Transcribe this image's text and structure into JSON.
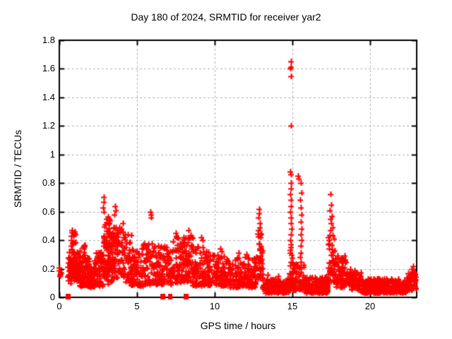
{
  "title": "Day 180 of 2024, SRMTID for receiver yar2",
  "x_axis": {
    "label": "GPS time / hours",
    "min": 0,
    "max": 23,
    "ticks": [
      0,
      5,
      10,
      15,
      20
    ],
    "tick_labels": [
      "0",
      "5",
      "10",
      "15",
      "20"
    ]
  },
  "y_axis": {
    "label": "SRMTID / TECUs",
    "min": 0,
    "max": 1.8,
    "ticks": [
      0,
      0.2,
      0.4,
      0.6,
      0.8,
      1.0,
      1.2,
      1.4,
      1.6,
      1.8
    ],
    "tick_labels": [
      "0",
      "0.2",
      "0.4",
      "0.6",
      "0.8",
      "1",
      "1.2",
      "1.4",
      "1.6",
      "1.8"
    ]
  },
  "colors": {
    "marker": "#ff0000",
    "grid": "#b0b0b0",
    "axis": "#000000",
    "background": "#ffffff",
    "text": "#000000"
  },
  "chart_data": {
    "type": "scatter",
    "title": "Day 180 of 2024, SRMTID for receiver yar2",
    "xlabel": "GPS time / hours",
    "ylabel": "SRMTID / TECUs",
    "xlim": [
      0,
      23
    ],
    "ylim": [
      0,
      1.8
    ],
    "grid": true,
    "grid_style": "dashed",
    "legend": "none",
    "seed": 20240180,
    "series": [
      {
        "name": "srmtid-points",
        "marker": "plus",
        "color": "#ff0000",
        "clusters": [
          {
            "x0": 0.0,
            "x1": 0.12,
            "y0": 0.14,
            "y1": 0.21,
            "n": 7,
            "p": 1.0
          },
          {
            "x0": 0.55,
            "x1": 0.8,
            "y0": 0.1,
            "y1": 0.32,
            "n": 30,
            "p": 1.2
          },
          {
            "x0": 0.72,
            "x1": 1.08,
            "y0": 0.14,
            "y1": 0.47,
            "n": 55,
            "p": 1.3
          },
          {
            "x0": 0.95,
            "x1": 1.35,
            "y0": 0.1,
            "y1": 0.33,
            "n": 45,
            "p": 1.3
          },
          {
            "x0": 1.3,
            "x1": 1.95,
            "y0": 0.08,
            "y1": 0.3,
            "n": 80,
            "p": 1.5
          },
          {
            "x0": 1.5,
            "x1": 1.7,
            "y0": 0.24,
            "y1": 0.37,
            "n": 12,
            "p": 1.0
          },
          {
            "x0": 1.9,
            "x1": 2.3,
            "y0": 0.07,
            "y1": 0.22,
            "n": 45,
            "p": 1.2
          },
          {
            "x0": 2.25,
            "x1": 2.78,
            "y0": 0.08,
            "y1": 0.32,
            "n": 55,
            "p": 1.4
          },
          {
            "x0": 2.78,
            "x1": 3.02,
            "y0": 0.14,
            "y1": 0.58,
            "n": 30,
            "p": 1.5
          },
          {
            "x0": 3.0,
            "x1": 3.5,
            "y0": 0.22,
            "y1": 0.57,
            "n": 55,
            "p": 1.2
          },
          {
            "x0": 3.0,
            "x1": 3.55,
            "y0": 0.09,
            "y1": 0.25,
            "n": 30,
            "p": 1.0
          },
          {
            "x0": 3.5,
            "x1": 4.15,
            "y0": 0.14,
            "y1": 0.52,
            "n": 60,
            "p": 1.4
          },
          {
            "x0": 4.15,
            "x1": 4.65,
            "y0": 0.11,
            "y1": 0.44,
            "n": 45,
            "p": 1.4
          },
          {
            "x0": 4.6,
            "x1": 5.4,
            "y0": 0.08,
            "y1": 0.35,
            "n": 75,
            "p": 1.5
          },
          {
            "x0": 5.4,
            "x1": 6.25,
            "y0": 0.09,
            "y1": 0.38,
            "n": 65,
            "p": 1.5
          },
          {
            "x0": 6.25,
            "x1": 7.25,
            "y0": 0.09,
            "y1": 0.36,
            "n": 85,
            "p": 1.5
          },
          {
            "x0": 7.25,
            "x1": 8.05,
            "y0": 0.1,
            "y1": 0.42,
            "n": 75,
            "p": 1.5
          },
          {
            "x0": 8.0,
            "x1": 8.6,
            "y0": 0.11,
            "y1": 0.45,
            "n": 55,
            "p": 1.4
          },
          {
            "x0": 8.6,
            "x1": 9.6,
            "y0": 0.08,
            "y1": 0.36,
            "n": 85,
            "p": 1.5
          },
          {
            "x0": 9.6,
            "x1": 11.0,
            "y0": 0.08,
            "y1": 0.3,
            "n": 115,
            "p": 1.4
          },
          {
            "x0": 11.0,
            "x1": 12.65,
            "y0": 0.07,
            "y1": 0.28,
            "n": 125,
            "p": 1.4
          },
          {
            "x0": 12.62,
            "x1": 13.1,
            "y0": 0.13,
            "y1": 0.45,
            "n": 40,
            "p": 1.4
          },
          {
            "x0": 13.1,
            "x1": 14.78,
            "y0": 0.03,
            "y1": 0.13,
            "n": 160,
            "p": 1.3
          },
          {
            "x0": 14.8,
            "x1": 15.05,
            "y0": 0.05,
            "y1": 0.33,
            "n": 32,
            "p": 1.5
          },
          {
            "x0": 15.05,
            "x1": 15.45,
            "y0": 0.05,
            "y1": 0.24,
            "n": 28,
            "p": 1.4
          },
          {
            "x0": 15.45,
            "x1": 15.78,
            "y0": 0.05,
            "y1": 0.26,
            "n": 26,
            "p": 1.4
          },
          {
            "x0": 15.78,
            "x1": 17.3,
            "y0": 0.03,
            "y1": 0.14,
            "n": 145,
            "p": 1.4
          },
          {
            "x0": 17.3,
            "x1": 17.75,
            "y0": 0.09,
            "y1": 0.45,
            "n": 42,
            "p": 1.3
          },
          {
            "x0": 17.75,
            "x1": 18.45,
            "y0": 0.07,
            "y1": 0.3,
            "n": 60,
            "p": 1.5
          },
          {
            "x0": 18.45,
            "x1": 19.4,
            "y0": 0.05,
            "y1": 0.2,
            "n": 70,
            "p": 1.4
          },
          {
            "x0": 19.4,
            "x1": 22.35,
            "y0": 0.03,
            "y1": 0.13,
            "n": 270,
            "p": 1.3
          },
          {
            "x0": 22.35,
            "x1": 22.95,
            "y0": 0.05,
            "y1": 0.19,
            "n": 60,
            "p": 1.3
          }
        ],
        "outliers": [
          [
            2.86,
            0.7
          ],
          [
            2.88,
            0.67
          ],
          [
            2.84,
            0.63
          ],
          [
            2.87,
            0.6
          ],
          [
            3.58,
            0.64
          ],
          [
            3.62,
            0.61
          ],
          [
            3.55,
            0.58
          ],
          [
            5.88,
            0.6
          ],
          [
            5.93,
            0.58
          ],
          [
            5.9,
            0.56
          ],
          [
            7.5,
            0.45
          ],
          [
            7.55,
            0.43
          ],
          [
            8.3,
            0.47
          ],
          [
            9.15,
            0.42
          ],
          [
            9.22,
            0.4
          ],
          [
            10.35,
            0.34
          ],
          [
            10.45,
            0.32
          ],
          [
            11.55,
            0.31
          ],
          [
            12.05,
            0.3
          ],
          [
            12.85,
            0.62
          ],
          [
            12.88,
            0.59
          ],
          [
            12.83,
            0.56
          ],
          [
            12.9,
            0.52
          ],
          [
            12.93,
            0.49
          ],
          [
            12.8,
            0.47
          ],
          [
            13.4,
            0.16
          ],
          [
            14.1,
            0.15
          ],
          [
            14.9,
            1.65
          ],
          [
            14.93,
            1.61
          ],
          [
            14.88,
            1.6
          ],
          [
            14.91,
            1.55
          ],
          [
            14.9,
            1.2
          ],
          [
            14.87,
            0.88
          ],
          [
            14.92,
            0.86
          ],
          [
            14.89,
            0.8
          ],
          [
            14.91,
            0.76
          ],
          [
            14.88,
            0.72
          ],
          [
            14.93,
            0.68
          ],
          [
            14.9,
            0.64
          ],
          [
            14.87,
            0.6
          ],
          [
            14.92,
            0.56
          ],
          [
            14.89,
            0.52
          ],
          [
            14.94,
            0.48
          ],
          [
            14.9,
            0.44
          ],
          [
            14.86,
            0.4
          ],
          [
            14.93,
            0.37
          ],
          [
            14.91,
            0.35
          ],
          [
            15.37,
            0.85
          ],
          [
            15.42,
            0.83
          ],
          [
            15.55,
            0.8
          ],
          [
            15.58,
            0.73
          ],
          [
            15.52,
            0.68
          ],
          [
            15.56,
            0.63
          ],
          [
            15.6,
            0.58
          ],
          [
            15.54,
            0.53
          ],
          [
            15.57,
            0.48
          ],
          [
            15.53,
            0.44
          ],
          [
            15.59,
            0.4
          ],
          [
            15.55,
            0.36
          ],
          [
            15.56,
            0.31
          ],
          [
            15.52,
            0.28
          ],
          [
            17.45,
            0.72
          ],
          [
            17.49,
            0.65
          ],
          [
            17.42,
            0.61
          ],
          [
            17.53,
            0.57
          ],
          [
            17.46,
            0.55
          ],
          [
            17.5,
            0.52
          ],
          [
            17.57,
            0.49
          ],
          [
            17.44,
            0.47
          ],
          [
            22.75,
            0.22
          ],
          [
            22.7,
            0.2
          ]
        ]
      },
      {
        "name": "baseline-flags",
        "marker": "square",
        "color": "#ff0000",
        "points": [
          {
            "x": 0.55,
            "y": 0,
            "w": 7
          },
          {
            "x": 6.65,
            "y": 0,
            "w": 7
          },
          {
            "x": 7.08,
            "y": 0,
            "w": 3
          },
          {
            "x": 7.22,
            "y": 0,
            "w": 3
          },
          {
            "x": 8.15,
            "y": 0,
            "w": 7
          }
        ]
      }
    ]
  }
}
